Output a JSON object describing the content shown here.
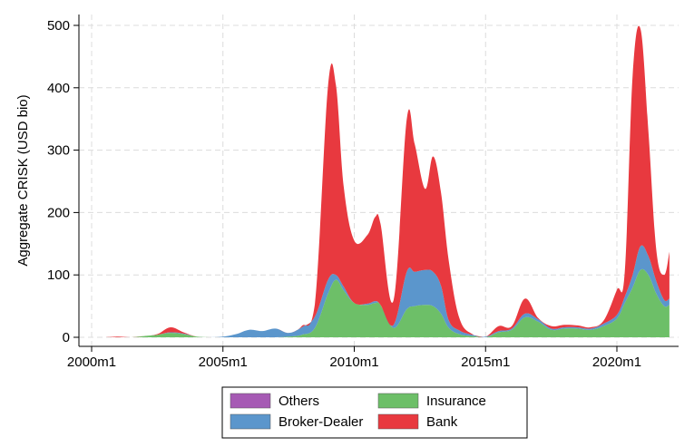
{
  "chart_data": {
    "type": "area",
    "stacked": true,
    "ylabel": "Aggregate CRISK (USD bio)",
    "xlabel": "",
    "ylim": [
      0,
      520
    ],
    "xlim": [
      2000.0,
      2022.3
    ],
    "yticks": [
      0,
      100,
      200,
      300,
      400,
      500
    ],
    "yticklabels": [
      "0",
      "100",
      "200",
      "300",
      "400",
      "500"
    ],
    "xticks": [
      2000,
      2005,
      2010,
      2015,
      2020
    ],
    "xticklabels": [
      "2000m1",
      "2005m1",
      "2010m1",
      "2015m1",
      "2020m1"
    ],
    "grid": true,
    "legend": {
      "position": "bottom",
      "columns": 2
    },
    "x": [
      2000.5,
      2001.0,
      2001.5,
      2002.0,
      2002.5,
      2003.0,
      2003.5,
      2004.0,
      2004.5,
      2005.0,
      2005.5,
      2006.0,
      2006.5,
      2007.0,
      2007.5,
      2008.0,
      2008.5,
      2009.0,
      2009.3,
      2009.6,
      2010.0,
      2010.5,
      2010.8,
      2011.0,
      2011.5,
      2012.0,
      2012.3,
      2012.7,
      2013.0,
      2013.3,
      2013.6,
      2014.0,
      2014.5,
      2015.0,
      2015.5,
      2016.0,
      2016.5,
      2017.0,
      2017.5,
      2018.0,
      2018.5,
      2019.0,
      2019.5,
      2020.0,
      2020.3,
      2020.6,
      2020.9,
      2021.2,
      2021.5,
      2021.8,
      2022.0
    ],
    "series": [
      {
        "name": "Others",
        "color": "#a65ab4",
        "values": [
          0,
          0,
          0,
          0,
          0,
          0,
          0,
          0,
          0,
          0,
          0,
          0,
          0,
          0,
          0,
          0,
          0,
          0,
          0,
          0,
          0,
          0,
          0,
          0,
          0,
          0,
          0,
          0,
          0,
          0,
          0,
          0,
          0,
          0,
          0,
          0,
          0,
          0,
          0,
          0,
          0,
          0,
          0,
          0,
          0,
          0,
          0,
          0,
          0,
          0,
          0
        ]
      },
      {
        "name": "Insurance",
        "color": "#6dbf68",
        "values": [
          0,
          0,
          0,
          2,
          4,
          7,
          5,
          1,
          0,
          0,
          0,
          0,
          0,
          0,
          1,
          4,
          15,
          70,
          92,
          75,
          55,
          52,
          55,
          52,
          15,
          45,
          50,
          52,
          50,
          38,
          15,
          5,
          2,
          0,
          8,
          12,
          32,
          25,
          12,
          14,
          14,
          12,
          18,
          30,
          55,
          80,
          108,
          100,
          70,
          50,
          52
        ]
      },
      {
        "name": "Broker-Dealer",
        "color": "#5b96cc",
        "values": [
          0,
          0,
          0,
          0,
          0,
          1,
          1,
          0,
          0,
          1,
          5,
          12,
          10,
          14,
          6,
          12,
          18,
          22,
          8,
          6,
          0,
          2,
          3,
          0,
          5,
          60,
          55,
          56,
          55,
          45,
          12,
          6,
          2,
          1,
          2,
          2,
          6,
          4,
          2,
          2,
          2,
          2,
          4,
          6,
          10,
          20,
          38,
          30,
          20,
          10,
          10
        ]
      },
      {
        "name": "Bank",
        "color": "#e8393f",
        "values": [
          0,
          1,
          0,
          0,
          1,
          8,
          2,
          0,
          0,
          0,
          0,
          0,
          0,
          0,
          0,
          2,
          20,
          310,
          305,
          160,
          100,
          110,
          135,
          130,
          40,
          245,
          205,
          130,
          185,
          150,
          95,
          20,
          1,
          0,
          8,
          4,
          24,
          2,
          4,
          4,
          3,
          2,
          5,
          40,
          40,
          320,
          348,
          200,
          50,
          40,
          75
        ]
      }
    ]
  }
}
